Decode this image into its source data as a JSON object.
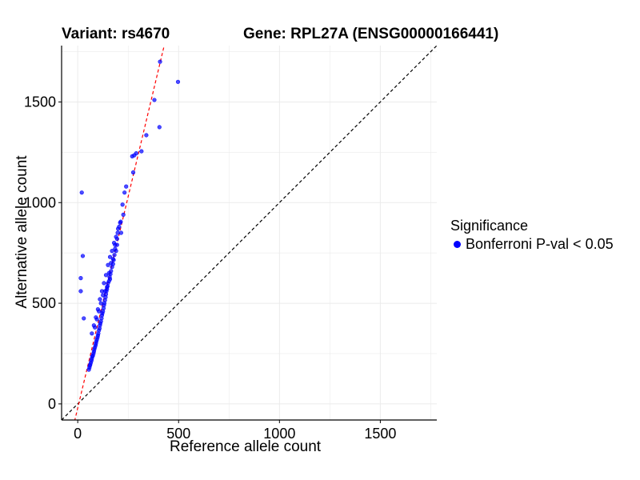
{
  "header": {
    "variant_label": "Variant: rs4670",
    "gene_label": "Gene: RPL27A (ENSG00000166441)"
  },
  "legend": {
    "title": "Significance",
    "items": [
      {
        "label": "Bonferroni P-val < 0.05",
        "color": "#0000ff"
      }
    ]
  },
  "colors": {
    "point": "#0000ff",
    "identity_line": "#000000",
    "fit_line": "#ff0000",
    "grid": "#ebebeb"
  },
  "chart_data": {
    "type": "scatter",
    "title": "Variant: rs4670    Gene: RPL27A (ENSG00000166441)",
    "xlabel": "Reference allele count",
    "ylabel": "Alternative allele count",
    "xlim": [
      -80,
      1780
    ],
    "ylim": [
      -80,
      1780
    ],
    "xticks": [
      0,
      500,
      1000,
      1500
    ],
    "yticks": [
      0,
      500,
      1000,
      1500
    ],
    "xtick_labels": [
      "0",
      "500",
      "1000",
      "1500"
    ],
    "ytick_labels": [
      "0",
      "500",
      "1000",
      "1500"
    ],
    "grid": true,
    "legend_position": "right",
    "reference_lines": [
      {
        "name": "identity",
        "style": "dashed",
        "color": "#000000",
        "slope": 1,
        "intercept": 0
      },
      {
        "name": "fit",
        "style": "dashed",
        "color": "#ff0000",
        "slope": 4.2,
        "intercept": -20
      }
    ],
    "series": [
      {
        "name": "Bonferroni P-val < 0.05",
        "color": "#0000ff",
        "x": [
          20,
          15,
          25,
          15,
          30,
          408,
          497,
          380,
          405,
          340,
          316,
          290,
          280,
          270,
          275,
          240,
          232,
          222,
          226,
          213,
          205,
          198,
          195,
          185,
          190,
          182,
          178,
          175,
          170,
          165,
          162,
          158,
          155,
          150,
          148,
          145,
          142,
          140,
          138,
          135,
          132,
          130,
          128,
          125,
          122,
          120,
          118,
          115,
          112,
          110,
          108,
          105,
          102,
          100,
          98,
          95,
          92,
          90,
          88,
          85,
          82,
          80,
          78,
          75,
          72,
          70,
          68,
          65,
          62,
          60,
          58,
          55,
          120,
          130,
          140,
          150,
          160,
          170,
          180,
          190,
          200,
          210,
          110,
          100,
          90,
          80,
          70,
          160,
          145,
          125,
          115,
          105,
          95,
          85,
          135,
          155,
          175,
          195,
          215,
          185,
          165
        ],
        "y": [
          1050,
          625,
          735,
          560,
          425,
          1700,
          1600,
          1510,
          1375,
          1335,
          1255,
          1245,
          1235,
          1230,
          1150,
          1080,
          1050,
          990,
          940,
          905,
          880,
          850,
          820,
          790,
          760,
          740,
          715,
          695,
          680,
          660,
          645,
          630,
          610,
          600,
          585,
          570,
          560,
          545,
          530,
          515,
          500,
          490,
          475,
          460,
          450,
          440,
          425,
          410,
          400,
          390,
          375,
          365,
          350,
          340,
          330,
          320,
          310,
          300,
          290,
          280,
          270,
          260,
          250,
          240,
          235,
          225,
          215,
          205,
          195,
          190,
          180,
          170,
          560,
          600,
          640,
          690,
          730,
          760,
          800,
          830,
          870,
          900,
          520,
          470,
          430,
          390,
          350,
          620,
          580,
          540,
          500,
          460,
          420,
          380,
          560,
          650,
          720,
          790,
          850,
          770,
          700
        ]
      }
    ]
  }
}
